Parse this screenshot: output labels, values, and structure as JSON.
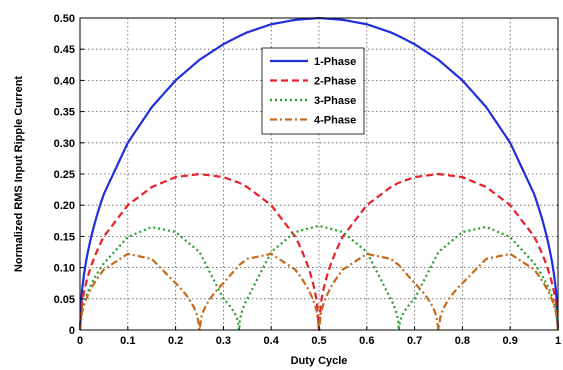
{
  "chart_data": {
    "type": "line",
    "title": "",
    "xlabel": "Duty Cycle",
    "ylabel": "Normalized RMS Input Ripple Current",
    "xlim": [
      0,
      1
    ],
    "ylim": [
      0,
      0.5
    ],
    "x_ticks": [
      "0",
      "0.1",
      "0.2",
      "0.3",
      "0.4",
      "0.5",
      "0.6",
      "0.7",
      "0.8",
      "0.9",
      "1"
    ],
    "y_ticks": [
      "0",
      "0.05",
      "0.10",
      "0.15",
      "0.20",
      "0.25",
      "0.30",
      "0.35",
      "0.40",
      "0.45",
      "0.50"
    ],
    "grid": "on (dotted)",
    "legend_position": "top-center",
    "x": [
      0,
      0.05,
      0.1,
      0.15,
      0.2,
      0.25,
      0.3,
      0.333,
      0.35,
      0.4,
      0.45,
      0.5,
      0.55,
      0.6,
      0.65,
      0.667,
      0.7,
      0.75,
      0.8,
      0.85,
      0.9,
      0.95,
      1
    ],
    "series": [
      {
        "name": "1-Phase",
        "color": "#1f2fdc",
        "style": "solid",
        "values": [
          0,
          0.218,
          0.3,
          0.357,
          0.4,
          0.433,
          0.458,
          0.471,
          0.477,
          0.49,
          0.497,
          0.5,
          0.497,
          0.49,
          0.477,
          0.471,
          0.458,
          0.433,
          0.4,
          0.357,
          0.3,
          0.218,
          0
        ]
      },
      {
        "name": "2-Phase",
        "color": "#e8202a",
        "style": "dashed",
        "values": [
          0,
          0.15,
          0.2,
          0.229,
          0.245,
          0.25,
          0.245,
          0.236,
          0.229,
          0.2,
          0.15,
          0,
          0.15,
          0.2,
          0.229,
          0.236,
          0.245,
          0.25,
          0.245,
          0.229,
          0.2,
          0.15,
          0
        ]
      },
      {
        "name": "3-Phase",
        "color": "#22a02a",
        "style": "dotted",
        "values": [
          0,
          0.107,
          0.149,
          0.165,
          0.157,
          0.125,
          0.05,
          0,
          0.05,
          0.125,
          0.157,
          0.167,
          0.157,
          0.125,
          0.05,
          0,
          0.05,
          0.125,
          0.157,
          0.165,
          0.149,
          0.107,
          0
        ]
      },
      {
        "name": "4-Phase",
        "color": "#c46a1c",
        "style": "dashdot",
        "values": [
          0,
          0.097,
          0.122,
          0.114,
          0.075,
          0,
          0.075,
          0.104,
          0.114,
          0.122,
          0.097,
          0,
          0.097,
          0.122,
          0.114,
          0.104,
          0.075,
          0,
          0.075,
          0.114,
          0.122,
          0.097,
          0
        ]
      }
    ]
  }
}
